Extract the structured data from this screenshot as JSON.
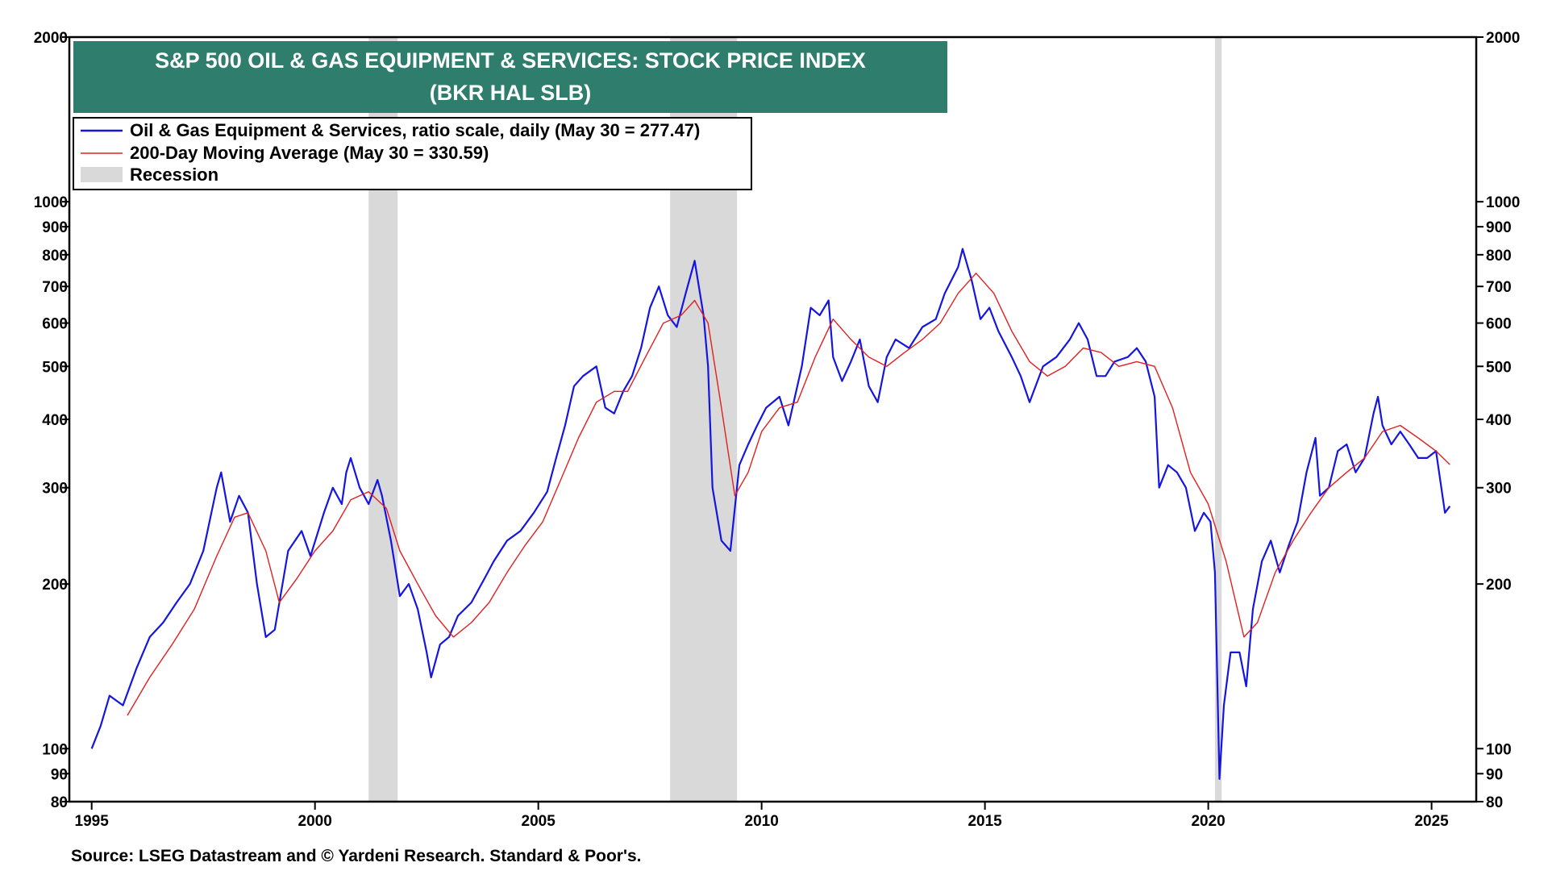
{
  "chart_data": {
    "type": "line",
    "title": "S&P 500 OIL & GAS EQUIPMENT & SERVICES: STOCK PRICE INDEX",
    "subtitle": "(BKR HAL SLB)",
    "y_scale": "log",
    "ylim": [
      80,
      2000
    ],
    "xlim": [
      1994.5,
      2026.0
    ],
    "y_ticks": [
      80,
      90,
      100,
      200,
      300,
      400,
      500,
      600,
      700,
      800,
      900,
      1000,
      2000
    ],
    "x_ticks": [
      1995,
      2000,
      2005,
      2010,
      2015,
      2020,
      2025
    ],
    "x_tick_labels": [
      "1995",
      "2000",
      "2005",
      "2010",
      "2015",
      "2020",
      "2025"
    ],
    "legend": [
      {
        "label": "Oil & Gas Equipment & Services, ratio scale, daily (May 30 = 277.47)",
        "color": "#1515e0",
        "kind": "line"
      },
      {
        "label": "200-Day Moving Average (May 30 = 330.59)",
        "color": "#e02020",
        "kind": "line"
      },
      {
        "label": "Recession",
        "color": "#d9d9d9",
        "kind": "box"
      }
    ],
    "legend_position": "top-left",
    "recessions": [
      [
        2001.2,
        2001.85
      ],
      [
        2007.95,
        2009.45
      ],
      [
        2020.15,
        2020.3
      ]
    ],
    "series": [
      {
        "name": "Oil & Gas Equipment & Services",
        "color": "#1515e0",
        "points": [
          [
            1995.0,
            100
          ],
          [
            1995.2,
            110
          ],
          [
            1995.4,
            125
          ],
          [
            1995.7,
            120
          ],
          [
            1996.0,
            140
          ],
          [
            1996.3,
            160
          ],
          [
            1996.6,
            170
          ],
          [
            1996.9,
            185
          ],
          [
            1997.2,
            200
          ],
          [
            1997.5,
            230
          ],
          [
            1997.8,
            300
          ],
          [
            1997.9,
            320
          ],
          [
            1998.1,
            260
          ],
          [
            1998.3,
            290
          ],
          [
            1998.5,
            270
          ],
          [
            1998.7,
            200
          ],
          [
            1998.9,
            160
          ],
          [
            1999.1,
            165
          ],
          [
            1999.4,
            230
          ],
          [
            1999.7,
            250
          ],
          [
            1999.9,
            225
          ],
          [
            2000.2,
            270
          ],
          [
            2000.4,
            300
          ],
          [
            2000.6,
            280
          ],
          [
            2000.7,
            320
          ],
          [
            2000.8,
            340
          ],
          [
            2001.0,
            300
          ],
          [
            2001.2,
            280
          ],
          [
            2001.4,
            310
          ],
          [
            2001.5,
            290
          ],
          [
            2001.7,
            240
          ],
          [
            2001.9,
            190
          ],
          [
            2002.1,
            200
          ],
          [
            2002.3,
            180
          ],
          [
            2002.5,
            150
          ],
          [
            2002.6,
            135
          ],
          [
            2002.8,
            155
          ],
          [
            2003.0,
            160
          ],
          [
            2003.2,
            175
          ],
          [
            2003.5,
            185
          ],
          [
            2003.8,
            205
          ],
          [
            2004.0,
            220
          ],
          [
            2004.3,
            240
          ],
          [
            2004.6,
            250
          ],
          [
            2004.9,
            270
          ],
          [
            2005.2,
            295
          ],
          [
            2005.4,
            340
          ],
          [
            2005.6,
            390
          ],
          [
            2005.8,
            460
          ],
          [
            2006.0,
            480
          ],
          [
            2006.3,
            500
          ],
          [
            2006.5,
            420
          ],
          [
            2006.7,
            410
          ],
          [
            2006.9,
            450
          ],
          [
            2007.1,
            480
          ],
          [
            2007.3,
            540
          ],
          [
            2007.5,
            640
          ],
          [
            2007.7,
            700
          ],
          [
            2007.9,
            620
          ],
          [
            2008.1,
            590
          ],
          [
            2008.3,
            680
          ],
          [
            2008.5,
            780
          ],
          [
            2008.7,
            620
          ],
          [
            2008.8,
            500
          ],
          [
            2008.9,
            300
          ],
          [
            2009.1,
            240
          ],
          [
            2009.3,
            230
          ],
          [
            2009.5,
            330
          ],
          [
            2009.7,
            360
          ],
          [
            2009.9,
            390
          ],
          [
            2010.1,
            420
          ],
          [
            2010.4,
            440
          ],
          [
            2010.6,
            390
          ],
          [
            2010.9,
            500
          ],
          [
            2011.1,
            640
          ],
          [
            2011.3,
            620
          ],
          [
            2011.5,
            660
          ],
          [
            2011.6,
            520
          ],
          [
            2011.8,
            470
          ],
          [
            2012.0,
            510
          ],
          [
            2012.2,
            560
          ],
          [
            2012.4,
            460
          ],
          [
            2012.6,
            430
          ],
          [
            2012.8,
            520
          ],
          [
            2013.0,
            560
          ],
          [
            2013.3,
            540
          ],
          [
            2013.6,
            590
          ],
          [
            2013.9,
            610
          ],
          [
            2014.1,
            680
          ],
          [
            2014.4,
            760
          ],
          [
            2014.5,
            820
          ],
          [
            2014.7,
            720
          ],
          [
            2014.9,
            610
          ],
          [
            2015.1,
            640
          ],
          [
            2015.3,
            580
          ],
          [
            2015.6,
            520
          ],
          [
            2015.8,
            480
          ],
          [
            2016.0,
            430
          ],
          [
            2016.3,
            500
          ],
          [
            2016.6,
            520
          ],
          [
            2016.9,
            560
          ],
          [
            2017.1,
            600
          ],
          [
            2017.3,
            560
          ],
          [
            2017.5,
            480
          ],
          [
            2017.7,
            480
          ],
          [
            2017.9,
            510
          ],
          [
            2018.2,
            520
          ],
          [
            2018.4,
            540
          ],
          [
            2018.6,
            510
          ],
          [
            2018.8,
            440
          ],
          [
            2018.9,
            300
          ],
          [
            2019.1,
            330
          ],
          [
            2019.3,
            320
          ],
          [
            2019.5,
            300
          ],
          [
            2019.7,
            250
          ],
          [
            2019.9,
            270
          ],
          [
            2020.05,
            260
          ],
          [
            2020.15,
            210
          ],
          [
            2020.25,
            88
          ],
          [
            2020.35,
            120
          ],
          [
            2020.5,
            150
          ],
          [
            2020.7,
            150
          ],
          [
            2020.85,
            130
          ],
          [
            2021.0,
            180
          ],
          [
            2021.2,
            220
          ],
          [
            2021.4,
            240
          ],
          [
            2021.6,
            210
          ],
          [
            2021.8,
            235
          ],
          [
            2022.0,
            260
          ],
          [
            2022.2,
            320
          ],
          [
            2022.4,
            370
          ],
          [
            2022.5,
            290
          ],
          [
            2022.7,
            300
          ],
          [
            2022.9,
            350
          ],
          [
            2023.1,
            360
          ],
          [
            2023.3,
            320
          ],
          [
            2023.5,
            340
          ],
          [
            2023.7,
            410
          ],
          [
            2023.8,
            440
          ],
          [
            2023.9,
            390
          ],
          [
            2024.1,
            360
          ],
          [
            2024.3,
            380
          ],
          [
            2024.5,
            360
          ],
          [
            2024.7,
            340
          ],
          [
            2024.9,
            340
          ],
          [
            2025.1,
            350
          ],
          [
            2025.3,
            270
          ],
          [
            2025.41,
            277.47
          ]
        ]
      },
      {
        "name": "200-Day Moving Average",
        "color": "#e02020",
        "points": [
          [
            1995.8,
            115
          ],
          [
            1996.3,
            135
          ],
          [
            1996.8,
            155
          ],
          [
            1997.3,
            180
          ],
          [
            1997.8,
            225
          ],
          [
            1998.2,
            265
          ],
          [
            1998.5,
            270
          ],
          [
            1998.9,
            230
          ],
          [
            1999.2,
            185
          ],
          [
            1999.6,
            205
          ],
          [
            2000.0,
            230
          ],
          [
            2000.4,
            250
          ],
          [
            2000.8,
            285
          ],
          [
            2001.2,
            295
          ],
          [
            2001.6,
            275
          ],
          [
            2001.9,
            230
          ],
          [
            2002.3,
            200
          ],
          [
            2002.7,
            175
          ],
          [
            2003.1,
            160
          ],
          [
            2003.5,
            170
          ],
          [
            2003.9,
            185
          ],
          [
            2004.3,
            210
          ],
          [
            2004.7,
            235
          ],
          [
            2005.1,
            260
          ],
          [
            2005.5,
            310
          ],
          [
            2005.9,
            370
          ],
          [
            2006.3,
            430
          ],
          [
            2006.7,
            450
          ],
          [
            2007.0,
            450
          ],
          [
            2007.4,
            520
          ],
          [
            2007.8,
            600
          ],
          [
            2008.2,
            620
          ],
          [
            2008.5,
            660
          ],
          [
            2008.8,
            600
          ],
          [
            2009.1,
            420
          ],
          [
            2009.4,
            290
          ],
          [
            2009.7,
            320
          ],
          [
            2010.0,
            380
          ],
          [
            2010.4,
            420
          ],
          [
            2010.8,
            430
          ],
          [
            2011.2,
            520
          ],
          [
            2011.6,
            610
          ],
          [
            2012.0,
            560
          ],
          [
            2012.4,
            520
          ],
          [
            2012.8,
            500
          ],
          [
            2013.2,
            530
          ],
          [
            2013.6,
            560
          ],
          [
            2014.0,
            600
          ],
          [
            2014.4,
            680
          ],
          [
            2014.8,
            740
          ],
          [
            2015.2,
            680
          ],
          [
            2015.6,
            580
          ],
          [
            2016.0,
            510
          ],
          [
            2016.4,
            480
          ],
          [
            2016.8,
            500
          ],
          [
            2017.2,
            540
          ],
          [
            2017.6,
            530
          ],
          [
            2018.0,
            500
          ],
          [
            2018.4,
            510
          ],
          [
            2018.8,
            500
          ],
          [
            2019.2,
            420
          ],
          [
            2019.6,
            320
          ],
          [
            2020.0,
            280
          ],
          [
            2020.4,
            220
          ],
          [
            2020.8,
            160
          ],
          [
            2021.1,
            170
          ],
          [
            2021.5,
            210
          ],
          [
            2021.9,
            240
          ],
          [
            2022.3,
            270
          ],
          [
            2022.7,
            300
          ],
          [
            2023.1,
            320
          ],
          [
            2023.5,
            340
          ],
          [
            2023.9,
            380
          ],
          [
            2024.3,
            390
          ],
          [
            2024.7,
            370
          ],
          [
            2025.1,
            350
          ],
          [
            2025.41,
            330.59
          ]
        ]
      }
    ],
    "source": "Source: LSEG Datastream and © Yardeni Research. Standard & Poor's."
  }
}
